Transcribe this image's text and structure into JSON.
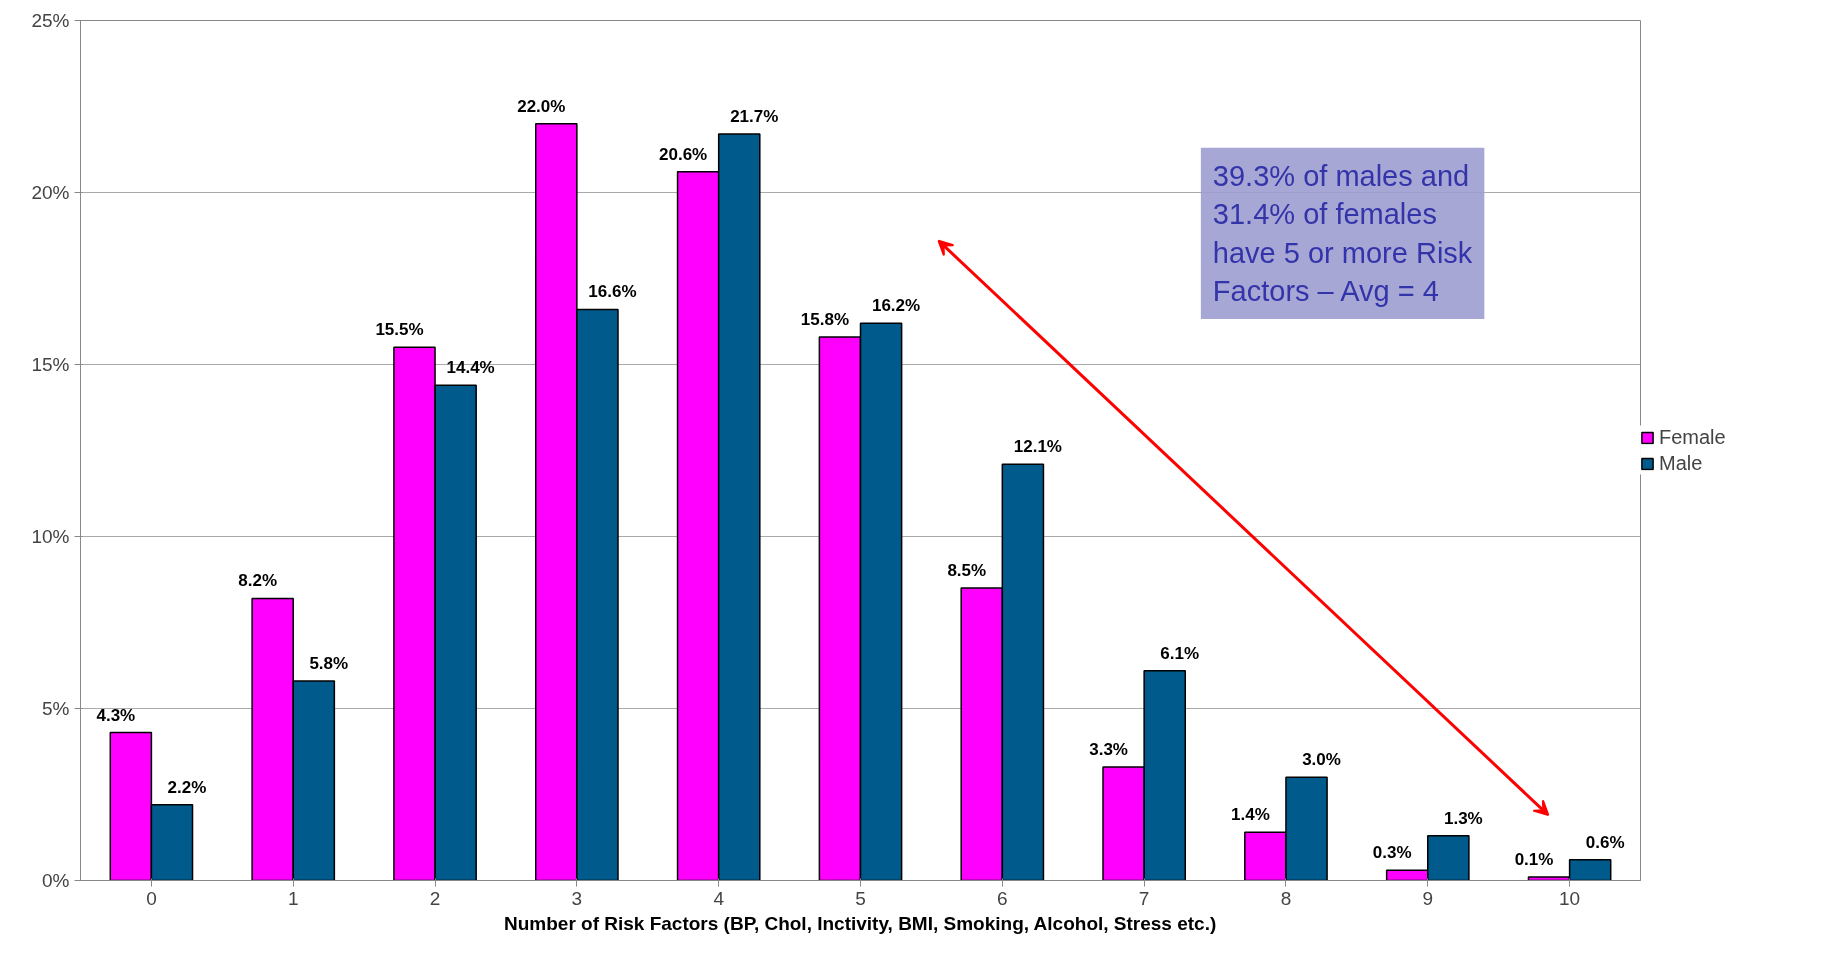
{
  "chart_data": {
    "type": "bar",
    "xlabel": "Number of Risk Factors (BP, Chol, Inctivity, BMI, Smoking, Alcohol, Stress etc.)",
    "categories": [
      "0",
      "1",
      "2",
      "3",
      "4",
      "5",
      "6",
      "7",
      "8",
      "9",
      "10"
    ],
    "series": [
      {
        "name": "Female",
        "color": "#ff00ff",
        "values": [
          4.3,
          8.2,
          15.5,
          22.0,
          20.6,
          15.8,
          8.5,
          3.3,
          1.4,
          0.3,
          0.1
        ],
        "value_labels": [
          "4.3%",
          "8.2%",
          "15.5%",
          "22.0%",
          "20.6%",
          "15.8%",
          "8.5%",
          "3.3%",
          "1.4%",
          "0.3%",
          "0.1%"
        ]
      },
      {
        "name": "Male",
        "color": "#005a8c",
        "values": [
          2.2,
          5.8,
          14.4,
          16.6,
          21.7,
          16.2,
          12.1,
          6.1,
          3.0,
          1.3,
          0.6
        ],
        "value_labels": [
          "2.2%",
          "5.8%",
          "14.4%",
          "16.6%",
          "21.7%",
          "16.2%",
          "12.1%",
          "6.1%",
          "3.0%",
          "1.3%",
          "0.6%"
        ]
      }
    ],
    "ylim": [
      0,
      25
    ],
    "yticks": [
      {
        "value": 0,
        "label": "0%"
      },
      {
        "value": 5,
        "label": "5%"
      },
      {
        "value": 10,
        "label": "10%"
      },
      {
        "value": 15,
        "label": "15%"
      },
      {
        "value": 20,
        "label": "20%"
      },
      {
        "value": 25,
        "label": "25%"
      }
    ],
    "grid": "y",
    "legend": "right",
    "annotations": [
      "39.3% of males and 31.4% of females have 5 or more Risk Factors – Avg = 4"
    ]
  }
}
